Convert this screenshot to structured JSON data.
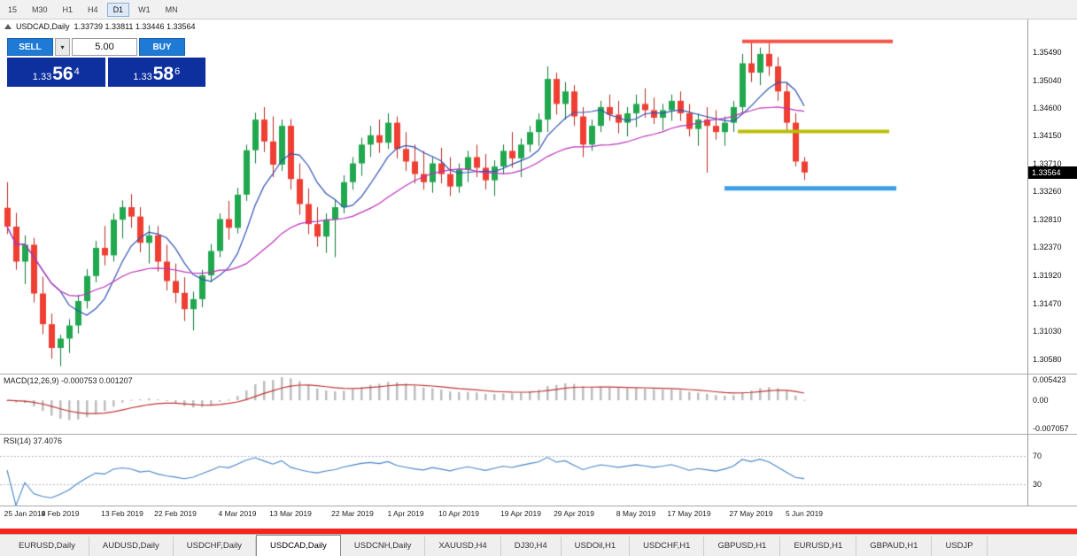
{
  "toolbar": {
    "timeframes": [
      {
        "label": "15",
        "active": false
      },
      {
        "label": "M30",
        "active": false
      },
      {
        "label": "H1",
        "active": false
      },
      {
        "label": "H4",
        "active": false
      },
      {
        "label": "D1",
        "active": true
      },
      {
        "label": "W1",
        "active": false
      },
      {
        "label": "MN",
        "active": false
      }
    ]
  },
  "chart_header": {
    "symbol": "USDCAD,Daily",
    "ohlc": "1.33739 1.33811 1.33446 1.33564"
  },
  "trade_panel": {
    "sell_label": "SELL",
    "buy_label": "BUY",
    "lot_size": "5.00",
    "sell_price_main": "1.33",
    "sell_price_big": "56",
    "sell_price_sup": "4",
    "buy_price_main": "1.33",
    "buy_price_big": "58",
    "buy_price_sup": "6"
  },
  "chart_data": {
    "type": "candlestick",
    "title": "USDCAD,Daily",
    "ohlc_label": "1.33739 1.33811 1.33446 1.33564",
    "ylim": [
      1.3035,
      1.3601
    ],
    "up_color": "#21a84f",
    "up_border": "#0e7a36",
    "down_color": "#ef3e32",
    "down_border": "#bb2a20",
    "price_axis_ticks": [
      "1.35490",
      "1.35040",
      "1.34600",
      "1.34150",
      "1.33710",
      "1.33260",
      "1.32810",
      "1.32370",
      "1.31920",
      "1.31470",
      "1.31030",
      "1.30580"
    ],
    "current_price": "1.33564",
    "date_ticks": [
      {
        "label": "25 Jan 2019",
        "candle": 0
      },
      {
        "label": "4 Feb 2019",
        "candle": 6
      },
      {
        "label": "13 Feb 2019",
        "candle": 13
      },
      {
        "label": "22 Feb 2019",
        "candle": 19
      },
      {
        "label": "4 Mar 2019",
        "candle": 26
      },
      {
        "label": "13 Mar 2019",
        "candle": 32
      },
      {
        "label": "22 Mar 2019",
        "candle": 39
      },
      {
        "label": "1 Apr 2019",
        "candle": 45
      },
      {
        "label": "10 Apr 2019",
        "candle": 51
      },
      {
        "label": "19 Apr 2019",
        "candle": 58
      },
      {
        "label": "29 Apr 2019",
        "candle": 64
      },
      {
        "label": "8 May 2019",
        "candle": 71
      },
      {
        "label": "17 May 2019",
        "candle": 77
      },
      {
        "label": "27 May 2019",
        "candle": 84
      },
      {
        "label": "5 Jun 2019",
        "candle": 90
      }
    ],
    "candles": [
      [
        1.33,
        1.3341,
        1.3258,
        1.327
      ],
      [
        1.327,
        1.3292,
        1.3201,
        1.3214
      ],
      [
        1.3214,
        1.3256,
        1.3178,
        1.3241
      ],
      [
        1.3241,
        1.3252,
        1.3149,
        1.3163
      ],
      [
        1.3163,
        1.319,
        1.3098,
        1.3114
      ],
      [
        1.3114,
        1.3131,
        1.3059,
        1.3076
      ],
      [
        1.3076,
        1.3097,
        1.3047,
        1.3091
      ],
      [
        1.3091,
        1.3122,
        1.3068,
        1.3112
      ],
      [
        1.3112,
        1.3161,
        1.3099,
        1.3151
      ],
      [
        1.3151,
        1.3202,
        1.3139,
        1.3191
      ],
      [
        1.3191,
        1.3247,
        1.3181,
        1.3236
      ],
      [
        1.3236,
        1.3271,
        1.3208,
        1.3224
      ],
      [
        1.3224,
        1.3291,
        1.3214,
        1.3281
      ],
      [
        1.3281,
        1.3312,
        1.3251,
        1.3301
      ],
      [
        1.3301,
        1.3322,
        1.3268,
        1.3286
      ],
      [
        1.3286,
        1.3301,
        1.3229,
        1.3244
      ],
      [
        1.3244,
        1.3272,
        1.3211,
        1.3256
      ],
      [
        1.3256,
        1.3271,
        1.3198,
        1.3214
      ],
      [
        1.3214,
        1.3241,
        1.3168,
        1.3183
      ],
      [
        1.3183,
        1.3211,
        1.3148,
        1.3164
      ],
      [
        1.3164,
        1.3189,
        1.3119,
        1.3138
      ],
      [
        1.3138,
        1.3166,
        1.3104,
        1.3154
      ],
      [
        1.3154,
        1.3201,
        1.3141,
        1.3192
      ],
      [
        1.3192,
        1.3242,
        1.3181,
        1.3231
      ],
      [
        1.3231,
        1.3291,
        1.3221,
        1.3282
      ],
      [
        1.3282,
        1.3311,
        1.3249,
        1.3268
      ],
      [
        1.3268,
        1.3332,
        1.3259,
        1.3321
      ],
      [
        1.3321,
        1.3401,
        1.3311,
        1.3392
      ],
      [
        1.3392,
        1.3452,
        1.3371,
        1.3441
      ],
      [
        1.3441,
        1.3461,
        1.3389,
        1.3406
      ],
      [
        1.3406,
        1.3446,
        1.3349,
        1.3369
      ],
      [
        1.3369,
        1.3441,
        1.3359,
        1.3431
      ],
      [
        1.3431,
        1.3442,
        1.3329,
        1.3346
      ],
      [
        1.3346,
        1.3371,
        1.3289,
        1.3306
      ],
      [
        1.3306,
        1.3331,
        1.3258,
        1.3274
      ],
      [
        1.3274,
        1.3301,
        1.3238,
        1.3254
      ],
      [
        1.3254,
        1.3291,
        1.3228,
        1.3281
      ],
      [
        1.3281,
        1.3312,
        1.3221,
        1.3301
      ],
      [
        1.3301,
        1.3352,
        1.3291,
        1.3341
      ],
      [
        1.3341,
        1.3381,
        1.3329,
        1.3371
      ],
      [
        1.3371,
        1.3412,
        1.3351,
        1.3401
      ],
      [
        1.3401,
        1.3431,
        1.3381,
        1.3416
      ],
      [
        1.3416,
        1.3441,
        1.3388,
        1.3404
      ],
      [
        1.3404,
        1.3451,
        1.3394,
        1.3436
      ],
      [
        1.3436,
        1.3446,
        1.3379,
        1.3394
      ],
      [
        1.3394,
        1.3421,
        1.3359,
        1.3374
      ],
      [
        1.3374,
        1.3401,
        1.3339,
        1.3354
      ],
      [
        1.3354,
        1.3391,
        1.3329,
        1.3341
      ],
      [
        1.3341,
        1.3381,
        1.3324,
        1.3371
      ],
      [
        1.3371,
        1.3396,
        1.3339,
        1.3354
      ],
      [
        1.3354,
        1.3381,
        1.3319,
        1.3334
      ],
      [
        1.3334,
        1.3371,
        1.3324,
        1.3361
      ],
      [
        1.3361,
        1.3391,
        1.3341,
        1.3381
      ],
      [
        1.3381,
        1.3401,
        1.3349,
        1.3364
      ],
      [
        1.3364,
        1.3386,
        1.3329,
        1.3344
      ],
      [
        1.3344,
        1.3376,
        1.3319,
        1.3366
      ],
      [
        1.3366,
        1.3401,
        1.3354,
        1.3391
      ],
      [
        1.3391,
        1.3421,
        1.3364,
        1.3379
      ],
      [
        1.3379,
        1.3411,
        1.3349,
        1.3401
      ],
      [
        1.3401,
        1.3431,
        1.3389,
        1.3421
      ],
      [
        1.3421,
        1.3451,
        1.3399,
        1.3441
      ],
      [
        1.3441,
        1.3526,
        1.3421,
        1.3506
      ],
      [
        1.3506,
        1.3516,
        1.3449,
        1.3466
      ],
      [
        1.3466,
        1.3501,
        1.3441,
        1.3486
      ],
      [
        1.3486,
        1.3496,
        1.3431,
        1.3446
      ],
      [
        1.3446,
        1.3461,
        1.3381,
        1.3401
      ],
      [
        1.3401,
        1.3441,
        1.3391,
        1.3431
      ],
      [
        1.3431,
        1.3471,
        1.3421,
        1.3461
      ],
      [
        1.3461,
        1.3481,
        1.3439,
        1.3449
      ],
      [
        1.3449,
        1.3471,
        1.3419,
        1.3436
      ],
      [
        1.3436,
        1.3461,
        1.3414,
        1.3451
      ],
      [
        1.3451,
        1.3481,
        1.3429,
        1.3466
      ],
      [
        1.3466,
        1.3491,
        1.3444,
        1.3456
      ],
      [
        1.3456,
        1.3476,
        1.3434,
        1.3444
      ],
      [
        1.3444,
        1.3466,
        1.3424,
        1.3456
      ],
      [
        1.3456,
        1.3481,
        1.3439,
        1.3471
      ],
      [
        1.3471,
        1.3486,
        1.3439,
        1.3451
      ],
      [
        1.3451,
        1.3466,
        1.3414,
        1.3426
      ],
      [
        1.3426,
        1.3451,
        1.3399,
        1.3441
      ],
      [
        1.3441,
        1.3461,
        1.3356,
        1.3431
      ],
      [
        1.3431,
        1.3456,
        1.3409,
        1.3421
      ],
      [
        1.3421,
        1.3446,
        1.3399,
        1.3436
      ],
      [
        1.3436,
        1.3471,
        1.3421,
        1.3461
      ],
      [
        1.3461,
        1.3546,
        1.3451,
        1.3531
      ],
      [
        1.3531,
        1.3566,
        1.3501,
        1.3516
      ],
      [
        1.3516,
        1.3556,
        1.3496,
        1.3546
      ],
      [
        1.3546,
        1.3566,
        1.3511,
        1.3526
      ],
      [
        1.3526,
        1.3541,
        1.3471,
        1.3486
      ],
      [
        1.3486,
        1.3501,
        1.3421,
        1.3436
      ],
      [
        1.3436,
        1.3451,
        1.3366,
        1.3374
      ],
      [
        1.33739,
        1.33811,
        1.33446,
        1.33564
      ]
    ],
    "moving_averages": [
      {
        "name": "fast-ma",
        "period": 7,
        "color": "#3452b4"
      },
      {
        "name": "slow-ma",
        "period": 25,
        "color": "#bb33bb"
      }
    ],
    "annotations": [
      {
        "name": "resistance-line",
        "price": 1.3566,
        "from_candle": 83,
        "to_candle": 100,
        "color": "#f4554a",
        "thickness": 4
      },
      {
        "name": "mid-resistance-line",
        "price": 1.3422,
        "from_candle": 82.5,
        "to_candle": 99.6,
        "color": "#b9bf0a",
        "thickness": 4
      },
      {
        "name": "support-line",
        "price": 1.3331,
        "from_candle": 81,
        "to_candle": 100.4,
        "color": "#3d9ee8",
        "thickness": 5
      }
    ],
    "macd": {
      "label": "MACD(12,26,9) -0.000753 0.001207",
      "fast": 12,
      "slow": 26,
      "signal": 9,
      "ylim": [
        -0.007057,
        0.005423
      ],
      "axis_ticks": [
        "0.005423",
        "0.00",
        "-0.007057"
      ],
      "hist_color": "#bdbdbd",
      "signal_color": "#c03535"
    },
    "rsi": {
      "label": "RSI(14) 37.4076",
      "period": 14,
      "ylim": [
        0,
        100
      ],
      "levels": [
        70,
        30
      ],
      "axis_ticks": [
        "70",
        "30"
      ],
      "line_color": "#4a86c8",
      "level_color": "#b4b4c8"
    }
  },
  "tabs": [
    {
      "label": "EURUSD,Daily",
      "active": false
    },
    {
      "label": "AUDUSD,Daily",
      "active": false
    },
    {
      "label": "USDCHF,Daily",
      "active": false
    },
    {
      "label": "USDCAD,Daily",
      "active": true
    },
    {
      "label": "USDCNH,Daily",
      "active": false
    },
    {
      "label": "XAUUSD,H4",
      "active": false
    },
    {
      "label": "DJ30,H4",
      "active": false
    },
    {
      "label": "USDOil,H1",
      "active": false
    },
    {
      "label": "USDCHF,H1",
      "active": false
    },
    {
      "label": "GBPUSD,H1",
      "active": false
    },
    {
      "label": "EURUSD,H1",
      "active": false
    },
    {
      "label": "GBPAUD,H1",
      "active": false
    },
    {
      "label": "USDJP",
      "active": false
    }
  ],
  "colors": {
    "red_status_bar": "#f8231b",
    "trade_button_blue": "#1e7ad4",
    "price_box_navy": "#0e2f9e",
    "price_tag_bg": "#000000"
  }
}
